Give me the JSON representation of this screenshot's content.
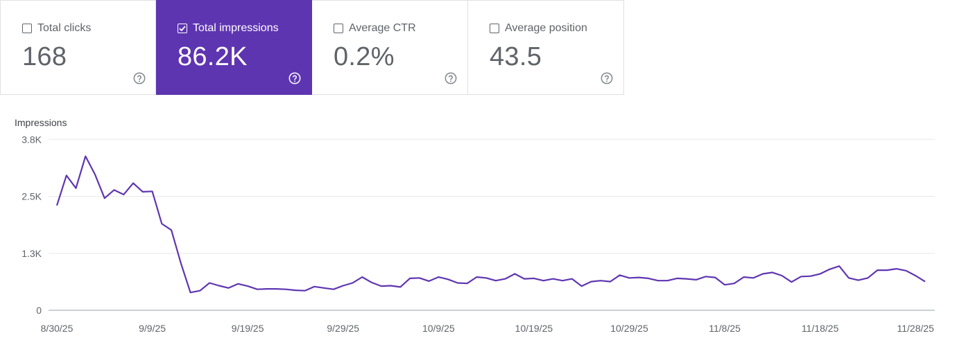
{
  "metrics": [
    {
      "label": "Total clicks",
      "value": "168",
      "checked": false
    },
    {
      "label": "Total impressions",
      "value": "86.2K",
      "checked": true
    },
    {
      "label": "Average CTR",
      "value": "0.2%",
      "checked": false
    },
    {
      "label": "Average position",
      "value": "43.5",
      "checked": false
    }
  ],
  "colors": {
    "accent": "#5e35b1",
    "line": "#5e35b1"
  },
  "chart_data": {
    "type": "line",
    "ylabel": "Impressions",
    "ylim": [
      0,
      3800
    ],
    "ytick_values": [
      0,
      1250,
      2500,
      3750
    ],
    "ytick_labels": [
      "0",
      "1.3K",
      "2.5K",
      "3.8K"
    ],
    "xtick_labels": [
      "8/30/25",
      "9/9/25",
      "9/19/25",
      "9/29/25",
      "10/9/25",
      "10/19/25",
      "10/29/25",
      "11/8/25",
      "11/18/25",
      "11/28/25"
    ],
    "x_start": "8/30/25",
    "grid": true,
    "series": [
      {
        "values": [
          2300,
          2960,
          2680,
          3380,
          2980,
          2460,
          2640,
          2540,
          2790,
          2600,
          2610,
          1900,
          1760,
          1030,
          390,
          430,
          600,
          540,
          490,
          580,
          530,
          460,
          470,
          470,
          460,
          440,
          430,
          520,
          490,
          460,
          540,
          600,
          730,
          610,
          530,
          540,
          510,
          700,
          710,
          640,
          730,
          680,
          600,
          590,
          730,
          710,
          650,
          690,
          800,
          690,
          700,
          650,
          690,
          650,
          690,
          530,
          630,
          650,
          630,
          770,
          710,
          720,
          700,
          650,
          650,
          700,
          690,
          670,
          740,
          720,
          560,
          590,
          730,
          710,
          800,
          830,
          760,
          620,
          740,
          750,
          800,
          900,
          970,
          710,
          660,
          710,
          880,
          880,
          910,
          870,
          760,
          630
        ]
      }
    ]
  }
}
